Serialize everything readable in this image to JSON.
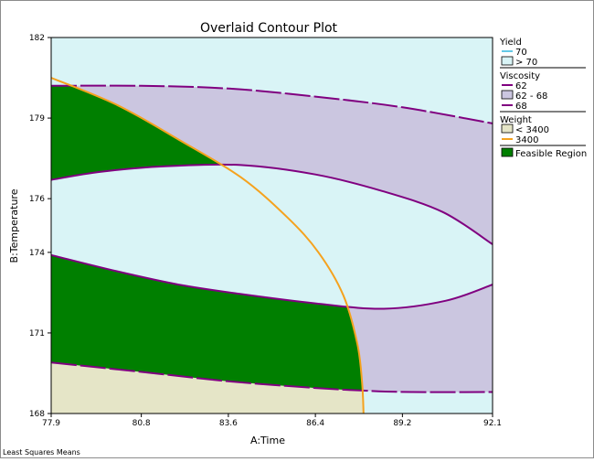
{
  "chart_data": {
    "type": "contour",
    "title": "Overlaid Contour Plot",
    "xlabel": "A:Time",
    "ylabel": "B:Temperature",
    "xlim": [
      77.9,
      92.1
    ],
    "ylim": [
      168,
      182
    ],
    "xticks": [
      "77.9",
      "80.8",
      "83.6",
      "86.4",
      "89.2",
      "92.1"
    ],
    "yticks": [
      "168",
      "171",
      "174",
      "176",
      "179",
      "182"
    ],
    "colors": {
      "yield_region": "#d9f4f6",
      "yield_line": "#64c8e6",
      "viscosity_region": "#cbc6e0",
      "viscosity_line": "#800080",
      "weight_region": "#e5e5c7",
      "weight_line": "#f5a21e",
      "feasible_region": "#007f00"
    },
    "legend": {
      "position": "right",
      "groups": [
        {
          "title": "Yield",
          "items": [
            {
              "symbol": "line",
              "label": "70"
            },
            {
              "symbol": "swatch",
              "label": "> 70"
            }
          ]
        },
        {
          "title": "Viscosity",
          "items": [
            {
              "symbol": "line",
              "label": "62"
            },
            {
              "symbol": "swatch",
              "label": "62 - 68"
            },
            {
              "symbol": "line",
              "label": "68"
            }
          ]
        },
        {
          "title": "Weight",
          "items": [
            {
              "symbol": "swatch",
              "label": "< 3400"
            },
            {
              "symbol": "line",
              "label": "3400"
            }
          ]
        },
        {
          "title": "",
          "items": [
            {
              "symbol": "swatch",
              "label": "Feasible Region"
            }
          ]
        }
      ]
    },
    "contours": {
      "viscosity_62": [
        [
          77.9,
          169.9
        ],
        [
          80.8,
          169.55
        ],
        [
          83.6,
          169.2
        ],
        [
          86.4,
          168.95
        ],
        [
          88,
          168.85
        ],
        [
          89.5,
          168.8
        ],
        [
          92.1,
          168.8
        ]
      ],
      "viscosity_68_top": [
        [
          77.9,
          180.2
        ],
        [
          80.8,
          180.2
        ],
        [
          83.6,
          180.1
        ],
        [
          86.4,
          179.8
        ],
        [
          89.2,
          179.4
        ],
        [
          92.1,
          178.8
        ]
      ],
      "viscosity_68_inner": [
        [
          77.9,
          176.7
        ],
        [
          79.5,
          177.0
        ],
        [
          81.5,
          177.2
        ],
        [
          84,
          177.25
        ],
        [
          86.4,
          176.9
        ],
        [
          88.5,
          176.3
        ],
        [
          90.5,
          175.5
        ],
        [
          92.1,
          174.3
        ]
      ],
      "viscosity_68_lower": [
        [
          77.9,
          173.9
        ],
        [
          80,
          173.3
        ],
        [
          82,
          172.8
        ],
        [
          84,
          172.45
        ],
        [
          86.4,
          172.1
        ],
        [
          88.6,
          171.9
        ],
        [
          90.6,
          172.2
        ],
        [
          92.1,
          172.8
        ]
      ],
      "weight_3400": [
        [
          77.9,
          180.5
        ],
        [
          80,
          179.5
        ],
        [
          82,
          178.2
        ],
        [
          84,
          176.8
        ],
        [
          85.5,
          175.3
        ],
        [
          86.5,
          174.0
        ],
        [
          87.3,
          172.4
        ],
        [
          87.75,
          170.6
        ],
        [
          87.9,
          169.2
        ],
        [
          87.95,
          168
        ]
      ]
    }
  },
  "footer": "Least Squares Means"
}
